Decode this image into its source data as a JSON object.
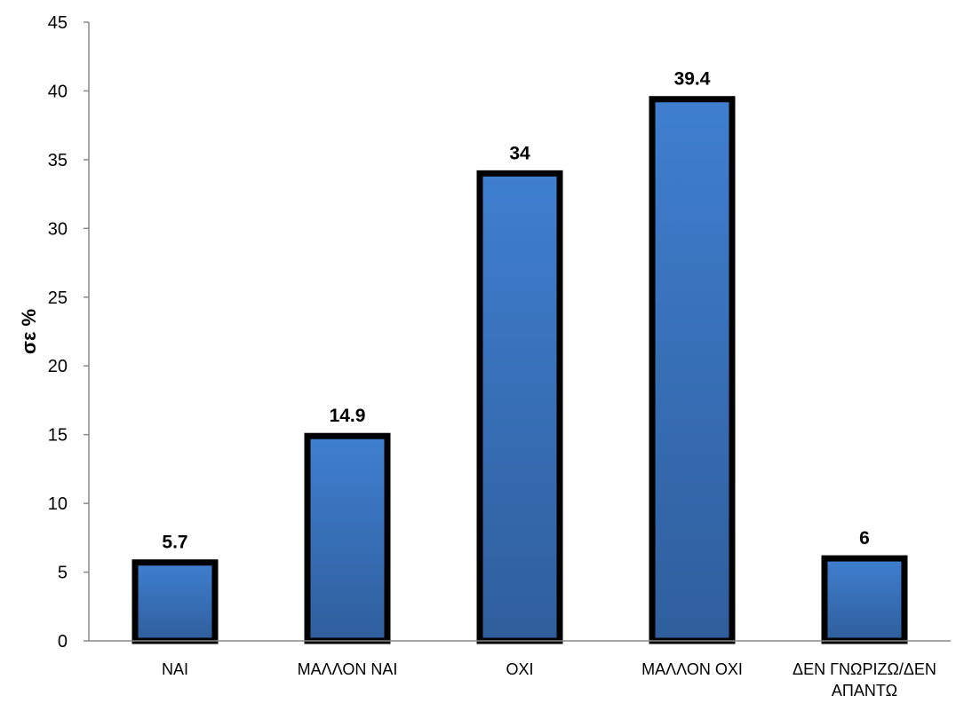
{
  "chart_data": {
    "type": "bar",
    "categories": [
      "ΝΑΙ",
      "ΜΑΛΛΟΝ ΝΑΙ",
      "ΟΧΙ",
      "ΜΑΛΛΟΝ ΟΧΙ",
      "ΔΕΝ ΓΝΩΡΙΖΩ/ΔΕΝ ΑΠΑΝΤΩ"
    ],
    "category_lines": [
      [
        "ΝΑΙ"
      ],
      [
        "ΜΑΛΛΟΝ ΝΑΙ"
      ],
      [
        "ΟΧΙ"
      ],
      [
        "ΜΑΛΛΟΝ ΟΧΙ"
      ],
      [
        "ΔΕΝ ΓΝΩΡΙΖΩ/ΔΕΝ",
        "ΑΠΑΝΤΩ"
      ]
    ],
    "values": [
      5.7,
      14.9,
      34,
      39.4,
      6
    ],
    "data_labels": [
      "5.7",
      "14.9",
      "34",
      "39.4",
      "6"
    ],
    "title": "",
    "xlabel": "",
    "ylabel": "σε %",
    "ylim": [
      0,
      45
    ],
    "yticks": [
      0,
      5,
      10,
      15,
      20,
      25,
      30,
      35,
      40,
      45
    ],
    "grid": false,
    "legend": "none",
    "colors": {
      "bar_top": "#3F7FD0",
      "bar_bottom": "#2F5E9C",
      "bar_border": "#000000",
      "axis": "#888888"
    }
  }
}
